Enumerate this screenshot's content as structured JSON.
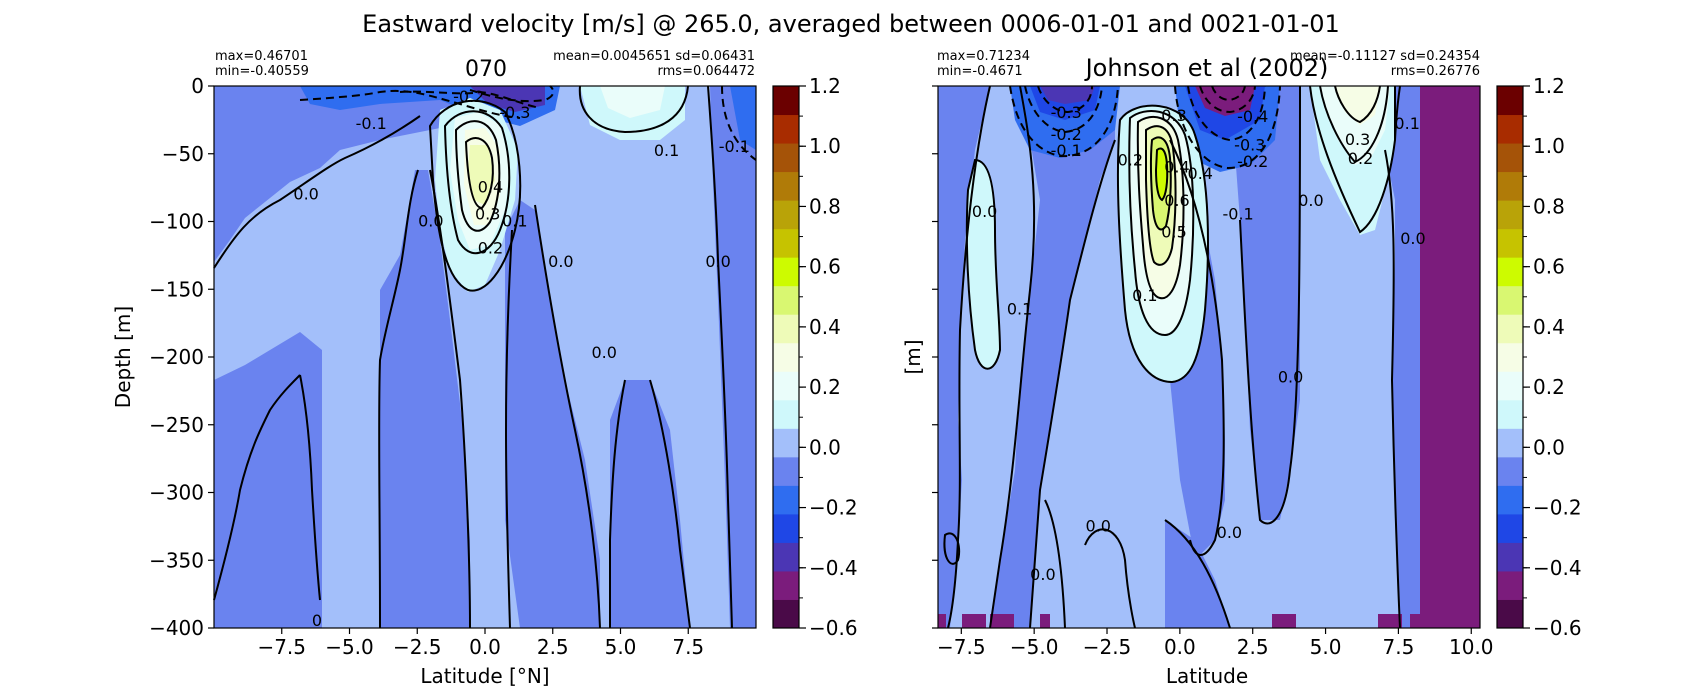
{
  "figure": {
    "suptitle": "Eastward velocity [m/s] @ 265.0, averaged between 0006-01-01 and 0021-01-01"
  },
  "colorbar": {
    "levels": [
      -0.6,
      -0.5,
      -0.4,
      -0.3,
      -0.2,
      -0.1,
      0.0,
      0.1,
      0.2,
      0.3,
      0.4,
      0.5,
      0.6,
      0.7,
      0.8,
      0.9,
      1.0,
      1.1,
      1.2
    ],
    "colors": [
      "#4a0a48",
      "#7b1c7c",
      "#4b36b4",
      "#1f47e6",
      "#2f6df0",
      "#6a83ef",
      "#a3bffa",
      "#cff8fb",
      "#eafdfa",
      "#f6fde6",
      "#eefbb8",
      "#d9f771",
      "#cdfb00",
      "#c6c300",
      "#b9a308",
      "#b07b08",
      "#a55308",
      "#a82c00",
      "#6b0000"
    ],
    "tick_labels": [
      "1.2",
      "1.0",
      "0.8",
      "0.6",
      "0.4",
      "0.2",
      "0.0",
      "−0.2",
      "−0.4",
      "−0.6"
    ]
  },
  "chart_data": [
    {
      "type": "heatmap",
      "title": "070",
      "xlabel": "Latitude [°N]",
      "ylabel": "Depth [m]",
      "xlim": [
        -10.0,
        10.0
      ],
      "ylim": [
        -400,
        0
      ],
      "x_tick_labels": [
        "−7.5",
        "−5.0",
        "−2.5",
        "0.0",
        "2.5",
        "5.0",
        "7.5"
      ],
      "y_tick_labels": [
        "0",
        "−50",
        "−100",
        "−150",
        "−200",
        "−250",
        "−300",
        "−350",
        "−400"
      ],
      "stats": {
        "max": "max=0.46701",
        "min": "min=-0.40559",
        "mean_sd": "mean=0.0045651 sd=0.06431",
        "rms": "rms=0.064472"
      },
      "contour_labels": [
        {
          "text": "-0.2",
          "lat": -0.6,
          "depth": -8
        },
        {
          "text": "-0.3",
          "lat": 1.1,
          "depth": -20
        },
        {
          "text": "-0.1",
          "lat": -4.2,
          "depth": -28
        },
        {
          "text": "0.1",
          "lat": 6.7,
          "depth": -48
        },
        {
          "text": "-0.1",
          "lat": 9.2,
          "depth": -45
        },
        {
          "text": "0.0",
          "lat": -6.6,
          "depth": -80
        },
        {
          "text": "0.4",
          "lat": 0.2,
          "depth": -75
        },
        {
          "text": "0.3",
          "lat": 0.1,
          "depth": -95
        },
        {
          "text": "0.1",
          "lat": 1.1,
          "depth": -100
        },
        {
          "text": "0.2",
          "lat": 0.2,
          "depth": -120
        },
        {
          "text": "0.0",
          "lat": -2.0,
          "depth": -100
        },
        {
          "text": "0.0",
          "lat": 2.8,
          "depth": -130
        },
        {
          "text": "0.0",
          "lat": 8.6,
          "depth": -130
        },
        {
          "text": "0.0",
          "lat": 4.4,
          "depth": -197
        },
        {
          "text": "0",
          "lat": -6.2,
          "depth": -395
        }
      ]
    },
    {
      "type": "heatmap",
      "title": "Johnson et al (2002)",
      "xlabel": "Latitude",
      "ylabel": "[m]",
      "xlim": [
        -8.3,
        10.3
      ],
      "ylim": [
        -400,
        0
      ],
      "x_tick_labels": [
        "−7.5",
        "−5.0",
        "−2.5",
        "0.0",
        "2.5",
        "5.0",
        "7.5",
        "10.0"
      ],
      "stats": {
        "max": "max=0.71234",
        "min": "min=-0.4671",
        "mean_sd": "mean=-0.11127 sd=0.24354",
        "rms": "rms=0.26776"
      },
      "contour_labels": [
        {
          "text": "-0.3",
          "lat": -3.9,
          "depth": -20
        },
        {
          "text": "-0.2",
          "lat": -3.9,
          "depth": -36
        },
        {
          "text": "-0.1",
          "lat": -3.9,
          "depth": -48
        },
        {
          "text": "0.3",
          "lat": -0.2,
          "depth": -22
        },
        {
          "text": "-0.4",
          "lat": 2.5,
          "depth": -23
        },
        {
          "text": "-0.3",
          "lat": 2.4,
          "depth": -44
        },
        {
          "text": "-0.2",
          "lat": 2.5,
          "depth": -56
        },
        {
          "text": "0.3",
          "lat": 6.1,
          "depth": -40
        },
        {
          "text": "0.2",
          "lat": 6.2,
          "depth": -54
        },
        {
          "text": "0.1",
          "lat": 7.8,
          "depth": -28
        },
        {
          "text": "0.2",
          "lat": -1.7,
          "depth": -55
        },
        {
          "text": "0.4",
          "lat": -0.1,
          "depth": -60
        },
        {
          "text": "0.6",
          "lat": -0.1,
          "depth": -85
        },
        {
          "text": "0.5",
          "lat": -0.2,
          "depth": -108
        },
        {
          "text": "0.4",
          "lat": 0.7,
          "depth": -65
        },
        {
          "text": "-0.1",
          "lat": 2.0,
          "depth": -95
        },
        {
          "text": "0.0",
          "lat": -6.7,
          "depth": -93
        },
        {
          "text": "0.0",
          "lat": 4.5,
          "depth": -85
        },
        {
          "text": "0.0",
          "lat": 8.0,
          "depth": -113
        },
        {
          "text": "0.1",
          "lat": -1.2,
          "depth": -155
        },
        {
          "text": "0.1",
          "lat": -5.5,
          "depth": -165
        },
        {
          "text": "0.0",
          "lat": 3.8,
          "depth": -215
        },
        {
          "text": "0.0",
          "lat": -2.8,
          "depth": -325
        },
        {
          "text": "0.0",
          "lat": 1.7,
          "depth": -330
        },
        {
          "text": "0.0",
          "lat": -4.7,
          "depth": -361
        }
      ]
    }
  ]
}
